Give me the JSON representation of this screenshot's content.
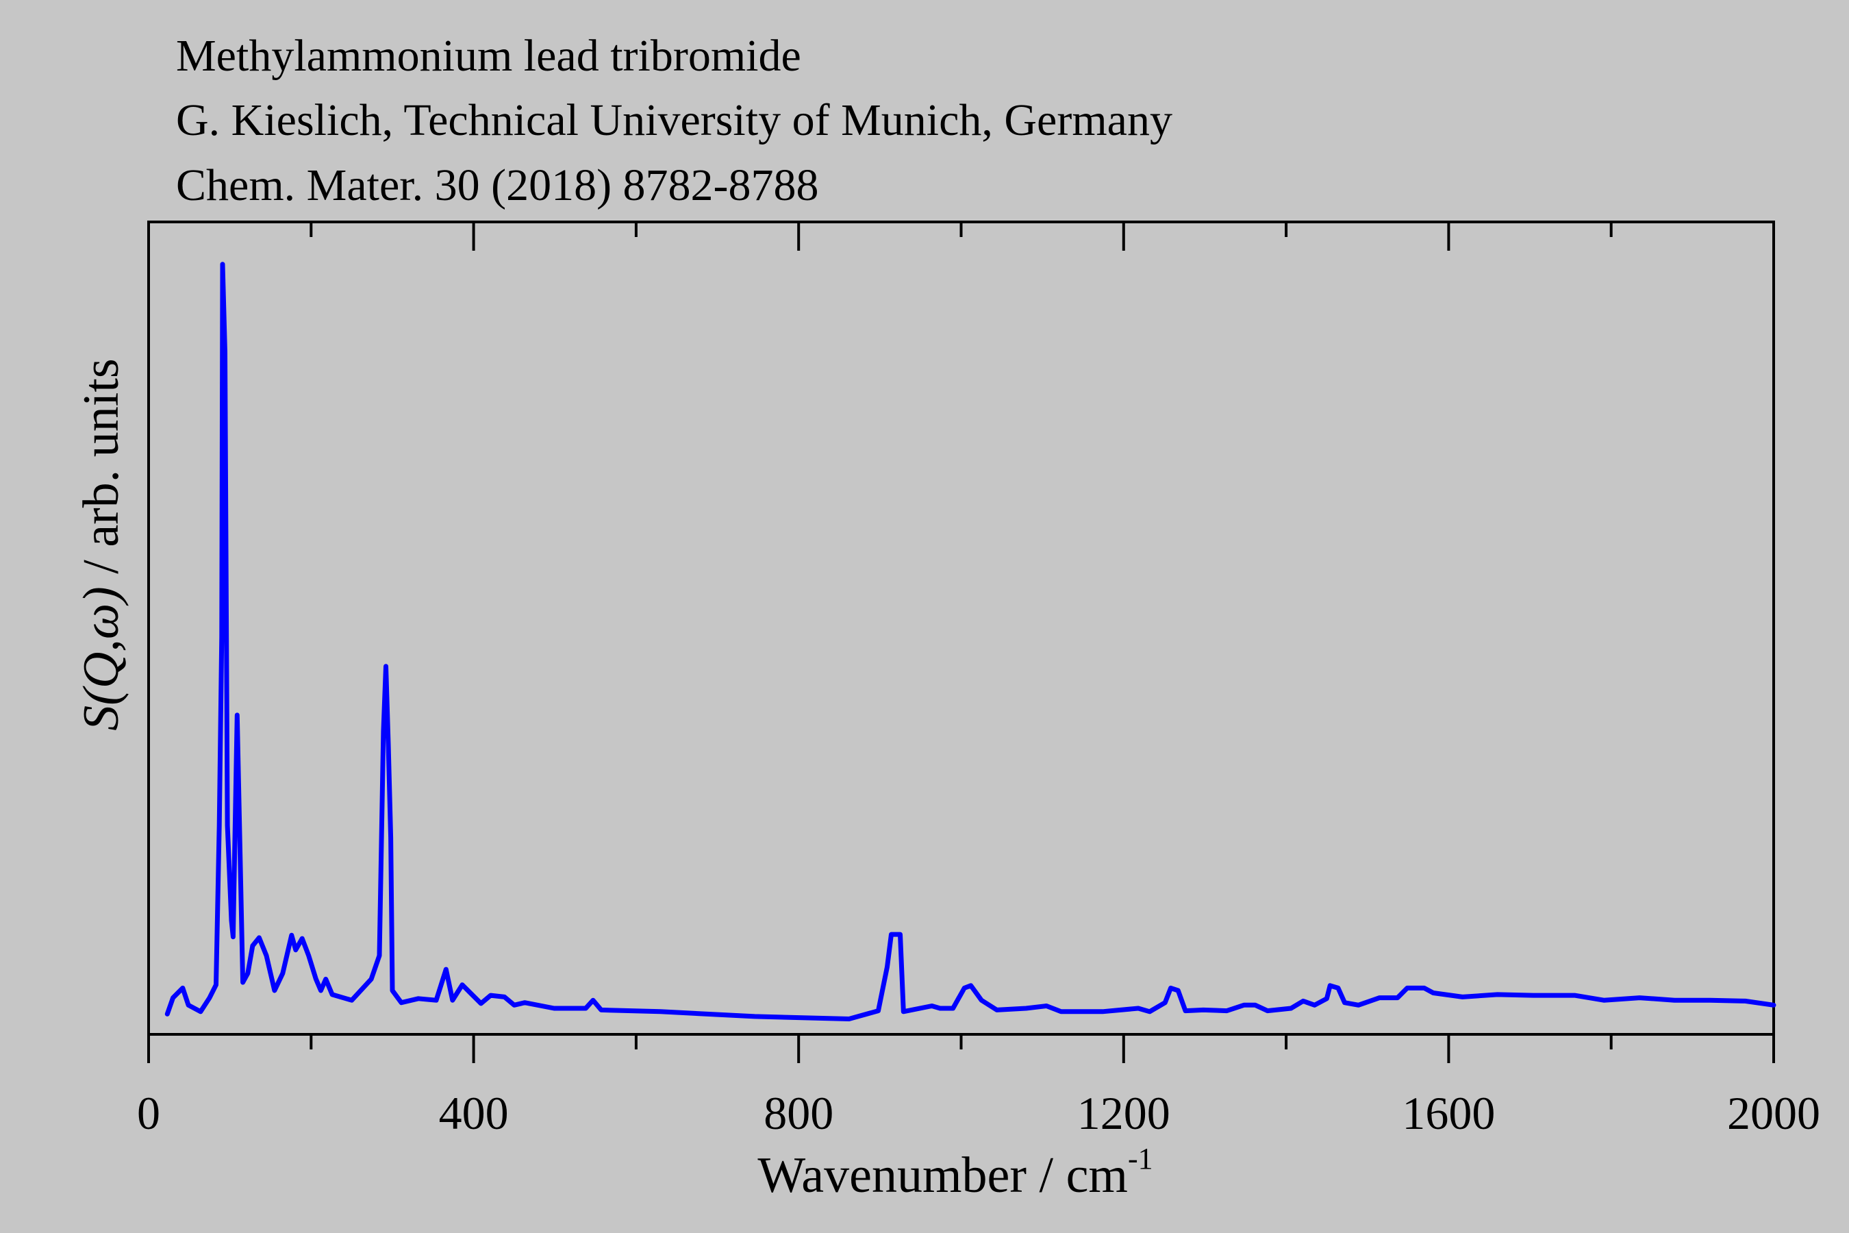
{
  "chart_data": {
    "type": "line",
    "title_lines": [
      "Methylammonium lead tribromide",
      "G. Kieslich, Technical University of Munich, Germany",
      "Chem. Mater. 30 (2018) 8782-8788"
    ],
    "xlabel": "Wavenumber / cm",
    "xlabel_superscript": "-1",
    "ylabel_prefix": "S(Q,ω)",
    "ylabel_suffix": " / arb. units",
    "xlim": [
      0,
      2000
    ],
    "ylim": [
      0,
      100
    ],
    "xticks_major": [
      0,
      400,
      800,
      1200,
      1600,
      2000
    ],
    "xticks_minor": [
      200,
      600,
      1000,
      1400,
      1800
    ],
    "xtick_labels": [
      "0",
      "400",
      "800",
      "1200",
      "1600",
      "2000"
    ],
    "grid": false,
    "series": [
      {
        "name": "S(Q,ω)",
        "color": "#0000ff",
        "x": [
          23,
          30,
          42,
          49,
          64,
          75,
          83,
          87,
          90,
          91,
          94,
          97,
          102,
          104,
          109,
          112,
          116,
          122,
          128,
          136,
          145,
          155,
          165,
          176,
          181,
          189,
          197,
          206,
          212,
          218,
          226,
          250,
          274,
          284,
          289,
          292,
          295,
          298,
          300,
          311,
          332,
          354,
          366,
          374,
          386,
          398,
          409,
          421,
          438,
          450,
          463,
          499,
          538,
          547,
          557,
          630,
          746,
          862,
          898,
          909,
          914,
          925,
          929,
          964,
          974,
          990,
          1004,
          1012,
          1025,
          1044,
          1080,
          1105,
          1123,
          1174,
          1218,
          1232,
          1251,
          1258,
          1267,
          1276,
          1298,
          1327,
          1348,
          1362,
          1377,
          1406,
          1421,
          1435,
          1450,
          1454,
          1464,
          1472,
          1489,
          1515,
          1537,
          1549,
          1570,
          1581,
          1617,
          1660,
          1704,
          1755,
          1791,
          1835,
          1878,
          1922,
          1965,
          2000
        ],
        "y": [
          2.5,
          4.5,
          5.7,
          3.6,
          2.8,
          4.5,
          6.1,
          25.7,
          49,
          94.8,
          84,
          25.7,
          14,
          12,
          39.3,
          25,
          6.4,
          7.5,
          10.9,
          11.9,
          9.7,
          5.4,
          7.5,
          12.2,
          10.4,
          11.8,
          9.7,
          6.8,
          5.4,
          6.8,
          4.9,
          4.2,
          6.8,
          9.7,
          37.3,
          45.3,
          35.8,
          24.2,
          5.4,
          3.9,
          4.4,
          4.2,
          8,
          4.2,
          6.1,
          4.9,
          3.8,
          4.8,
          4.6,
          3.6,
          3.9,
          3.2,
          3.2,
          4.2,
          3,
          2.8,
          2.2,
          1.9,
          2.9,
          8.3,
          12.3,
          12.3,
          2.8,
          3.5,
          3.2,
          3.2,
          5.7,
          6,
          4.2,
          3,
          3.2,
          3.5,
          2.8,
          2.8,
          3.2,
          2.8,
          3.9,
          5.7,
          5.4,
          2.9,
          3,
          2.9,
          3.6,
          3.6,
          2.9,
          3.2,
          4.1,
          3.6,
          4.4,
          6,
          5.7,
          3.9,
          3.6,
          4.5,
          4.5,
          5.7,
          5.7,
          5.1,
          4.6,
          4.9,
          4.8,
          4.8,
          4.2,
          4.5,
          4.2,
          4.2,
          4.1,
          3.6
        ]
      }
    ]
  }
}
